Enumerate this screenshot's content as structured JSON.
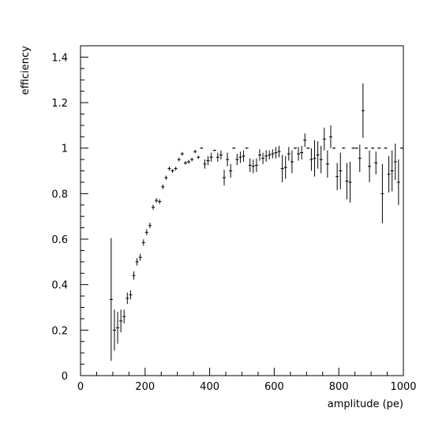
{
  "chart_data": {
    "type": "scatter",
    "title": "",
    "xlabel": "amplitude (pe)",
    "ylabel": "efficiency",
    "xlim": [
      0,
      1000
    ],
    "ylim": [
      0,
      1.45
    ],
    "x_ticks": [
      0,
      200,
      400,
      600,
      800,
      1000
    ],
    "x_tick_labels": [
      "0",
      "200",
      "400",
      "600",
      "800",
      "1000"
    ],
    "y_ticks": [
      0,
      0.2,
      0.4,
      0.6,
      0.8,
      1,
      1.2,
      1.4
    ],
    "y_tick_labels": [
      "0",
      "0.2",
      "0.4",
      "0.6",
      "0.8",
      "1",
      "1.2",
      "1.4"
    ],
    "grid": false,
    "legend": "none",
    "marker": "cross-with-error-bars",
    "x_bin_half_width": 5,
    "colors": {
      "marks": "#000000",
      "axes": "#000000"
    },
    "series": [
      {
        "x": [
          95,
          105,
          115,
          125,
          135,
          145,
          155,
          165,
          175,
          185,
          195,
          205,
          215,
          225,
          235,
          245,
          255,
          265,
          275,
          285,
          295,
          305,
          315,
          325,
          335,
          345,
          355,
          365,
          375,
          385,
          395,
          405,
          415,
          425,
          435,
          445,
          455,
          465,
          475,
          485,
          495,
          505,
          515,
          525,
          535,
          545,
          555,
          565,
          575,
          585,
          595,
          605,
          615,
          625,
          635,
          645,
          655,
          665,
          675,
          685,
          695,
          705,
          715,
          725,
          735,
          745,
          755,
          765,
          775,
          785,
          795,
          805,
          815,
          825,
          835,
          845,
          855,
          865,
          875,
          885,
          895,
          905,
          915,
          925,
          935,
          945,
          955,
          965,
          975,
          985,
          995
        ],
        "y": [
          0.335,
          0.2,
          0.21,
          0.24,
          0.26,
          0.34,
          0.355,
          0.44,
          0.5,
          0.52,
          0.585,
          0.63,
          0.66,
          0.74,
          0.77,
          0.765,
          0.83,
          0.87,
          0.91,
          0.9,
          0.91,
          0.95,
          0.975,
          0.935,
          0.94,
          0.95,
          0.985,
          0.96,
          1.0,
          0.93,
          0.945,
          0.96,
          0.99,
          0.96,
          0.97,
          0.87,
          0.95,
          0.9,
          1.0,
          0.95,
          0.96,
          0.965,
          1.0,
          0.925,
          0.92,
          0.925,
          0.97,
          0.955,
          0.965,
          0.97,
          0.975,
          0.98,
          0.985,
          0.91,
          0.915,
          0.975,
          0.94,
          1.0,
          0.975,
          0.98,
          1.035,
          1.0,
          0.95,
          0.955,
          0.97,
          0.95,
          1.04,
          0.93,
          1.05,
          1.0,
          0.875,
          0.9,
          1.0,
          0.855,
          0.85,
          1.0,
          1.0,
          0.955,
          1.165,
          1.0,
          0.92,
          1.0,
          0.935,
          1.0,
          0.8,
          1.0,
          0.885,
          0.9,
          0.94,
          0.85,
          1.0
        ],
        "y_err": [
          0.27,
          0.09,
          0.07,
          0.05,
          0.03,
          0.025,
          0.02,
          0.018,
          0.016,
          0.015,
          0.014,
          0.013,
          0.012,
          0.011,
          0.01,
          0.01,
          0.01,
          0.009,
          0.009,
          0.008,
          0.008,
          0.008,
          0.008,
          0.008,
          0.008,
          0.008,
          0.007,
          0.007,
          0.003,
          0.02,
          0.02,
          0.02,
          0.003,
          0.02,
          0.02,
          0.035,
          0.03,
          0.03,
          0.003,
          0.025,
          0.025,
          0.025,
          0.003,
          0.03,
          0.03,
          0.03,
          0.025,
          0.025,
          0.025,
          0.02,
          0.02,
          0.025,
          0.025,
          0.06,
          0.05,
          0.03,
          0.05,
          0.003,
          0.03,
          0.03,
          0.03,
          0.003,
          0.05,
          0.08,
          0.06,
          0.06,
          0.05,
          0.06,
          0.05,
          0.003,
          0.06,
          0.08,
          0.003,
          0.08,
          0.09,
          0.003,
          0.003,
          0.06,
          0.12,
          0.003,
          0.07,
          0.003,
          0.05,
          0.003,
          0.13,
          0.003,
          0.08,
          0.09,
          0.08,
          0.1,
          0.003
        ]
      }
    ]
  }
}
